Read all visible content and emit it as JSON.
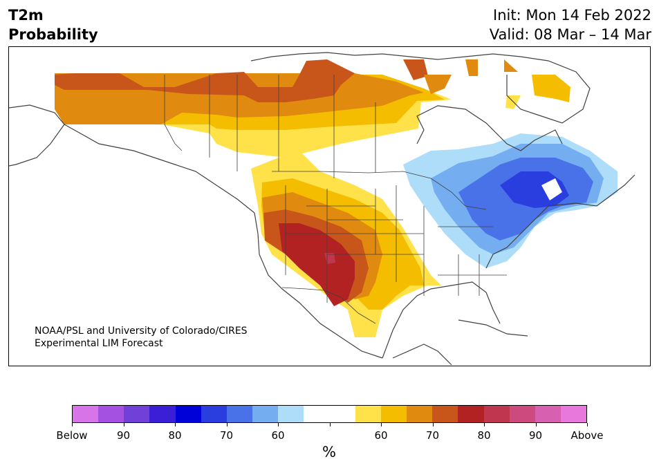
{
  "title": {
    "line1": "T2m",
    "line2": "Probability"
  },
  "init": "Init: Mon 14 Feb 2022",
  "valid": "Valid: 08 Mar – 14 Mar",
  "credit": {
    "line1": "NOAA/PSL and University of Colorado/CIRES",
    "line2": "Experimental LIM Forecast"
  },
  "colorbar": {
    "colors": [
      "#d674e8",
      "#a450e0",
      "#7040d8",
      "#3a1fd6",
      "#0000d8",
      "#2a3ee0",
      "#4a72e8",
      "#74aef0",
      "#aeddfa",
      "#ffffff",
      "#ffffff",
      "#ffe14a",
      "#f5bd00",
      "#e08a10",
      "#c8561a",
      "#b22222",
      "#c0364e",
      "#cc4a7e",
      "#d860b0",
      "#e878dc"
    ],
    "labels": [
      "Below",
      "90",
      "80",
      "70",
      "60",
      "",
      "60",
      "70",
      "80",
      "90",
      "Above"
    ],
    "unit": "%"
  },
  "map": {
    "coastline_color": "#404040",
    "border_color": "#404040"
  }
}
